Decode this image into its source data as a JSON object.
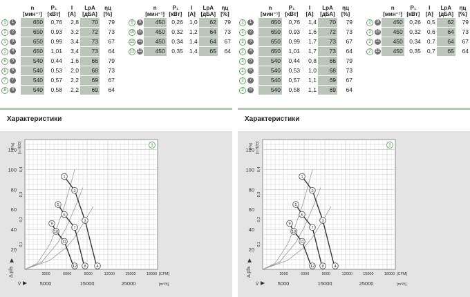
{
  "panels": [
    {
      "id": "1",
      "headers": {
        "n": "n",
        "n_unit": "[мин⁻¹]",
        "p": "P₁",
        "p_unit": "[кВт]",
        "i": "I",
        "i_unit": "[A]",
        "l": "LpA",
        "l_unit": "[дБА]",
        "e": "ηц",
        "e_unit": "[%]"
      },
      "rows_left": [
        {
          "curve": "1",
          "point": "1",
          "n": "650",
          "p": "0,76",
          "i": "2,8",
          "l": "70",
          "e": "79"
        },
        {
          "curve": "1",
          "point": "2",
          "n": "650",
          "p": "0,93",
          "i": "3,2",
          "l": "72",
          "e": "73"
        },
        {
          "curve": "1",
          "point": "3",
          "n": "650",
          "p": "0,99",
          "i": "3,4",
          "l": "73",
          "e": "67"
        },
        {
          "curve": "1",
          "point": "4",
          "n": "650",
          "p": "1,01",
          "i": "3,4",
          "l": "73",
          "e": "64"
        },
        {
          "curve": "5",
          "point": "5",
          "n": "540",
          "p": "0,44",
          "i": "1,6",
          "l": "66",
          "e": "79"
        },
        {
          "curve": "6",
          "point": "6",
          "n": "540",
          "p": "0,53",
          "i": "2,0",
          "l": "68",
          "e": "73"
        },
        {
          "curve": "7",
          "point": "7",
          "n": "540",
          "p": "0,57",
          "i": "2,2",
          "l": "69",
          "e": "67"
        },
        {
          "curve": "8",
          "point": "8",
          "n": "540",
          "p": "0,58",
          "i": "2,2",
          "l": "69",
          "e": "64"
        }
      ],
      "rows_right": [
        {
          "curve": "9",
          "point": "9",
          "n": "450",
          "p": "0,26",
          "i": "1,0",
          "l": "62",
          "e": "79"
        },
        {
          "curve": "10",
          "point": "10",
          "n": "450",
          "p": "0,32",
          "i": "1,2",
          "l": "64",
          "e": "73"
        },
        {
          "curve": "11",
          "point": "11",
          "n": "450",
          "p": "0,34",
          "i": "1,4",
          "l": "64",
          "e": "67"
        },
        {
          "curve": "12",
          "point": "12",
          "n": "450",
          "p": "0,35",
          "i": "1,4",
          "l": "65",
          "e": "64"
        }
      ],
      "heading": "Характеристики",
      "badge": "1"
    },
    {
      "id": "2",
      "headers": {
        "n": "n",
        "n_unit": "[мин⁻¹]",
        "p": "P₁",
        "p_unit": "[кВт]",
        "i": "I",
        "i_unit": "[A]",
        "l": "LpA",
        "l_unit": "[дБА]",
        "e": "ηц",
        "e_unit": "[%]"
      },
      "rows_left": [
        {
          "curve": "2",
          "point": "1",
          "n": "650",
          "p": "0,76",
          "i": "1,4",
          "l": "70",
          "e": "79"
        },
        {
          "curve": "2",
          "point": "2",
          "n": "650",
          "p": "0,93",
          "i": "1,6",
          "l": "72",
          "e": "73"
        },
        {
          "curve": "2",
          "point": "3",
          "n": "650",
          "p": "0,99",
          "i": "1,7",
          "l": "73",
          "e": "67"
        },
        {
          "curve": "2",
          "point": "4",
          "n": "650",
          "p": "1,01",
          "i": "1,7",
          "l": "73",
          "e": "64"
        },
        {
          "curve": "2",
          "point": "5",
          "n": "540",
          "p": "0,44",
          "i": "0,8",
          "l": "66",
          "e": "79"
        },
        {
          "curve": "2",
          "point": "6",
          "n": "540",
          "p": "0,53",
          "i": "1,0",
          "l": "68",
          "e": "73"
        },
        {
          "curve": "2",
          "point": "7",
          "n": "540",
          "p": "0,57",
          "i": "1,1",
          "l": "69",
          "e": "67"
        },
        {
          "curve": "2",
          "point": "8",
          "n": "540",
          "p": "0,58",
          "i": "1,1",
          "l": "69",
          "e": "64"
        }
      ],
      "rows_right": [
        {
          "curve": "2",
          "point": "9",
          "n": "450",
          "p": "0,26",
          "i": "0,5",
          "l": "62",
          "e": "79"
        },
        {
          "curve": "2",
          "point": "10",
          "n": "450",
          "p": "0,32",
          "i": "0,6",
          "l": "64",
          "e": "73"
        },
        {
          "curve": "2",
          "point": "11",
          "n": "450",
          "p": "0,34",
          "i": "0,7",
          "l": "64",
          "e": "67"
        },
        {
          "curve": "2",
          "point": "12",
          "n": "450",
          "p": "0,35",
          "i": "0,7",
          "l": "65",
          "e": "64"
        }
      ],
      "heading": "Характеристики",
      "badge": "2"
    }
  ],
  "chart_data": [
    {
      "type": "line",
      "badge": "1",
      "ylabel_left": "[Pa]",
      "ylabel_left2": "[in H2O]",
      "y_axis_label": "Δ pfa",
      "x_axis_label": "V̇",
      "y_ticks": [
        "120",
        "100",
        "80",
        "60",
        "40",
        "20"
      ],
      "y2_ticks": [
        "0,4",
        "0,3",
        "0,2",
        "0,1"
      ],
      "x_cfm_ticks": [
        "3000",
        "6000",
        "9000",
        "12000",
        "15000",
        "18000",
        "[CFM]"
      ],
      "x_m3h_ticks": [
        "5000",
        "15000",
        "25000",
        "[m³/h]"
      ],
      "xlim_m3h": [
        0,
        32000
      ],
      "ylim_pa": [
        0,
        130
      ],
      "speed_curves": [
        {
          "name": "650",
          "points": [
            [
              9500,
              93
            ],
            [
              12000,
              79
            ],
            [
              14500,
              49
            ],
            [
              17500,
              0
            ]
          ]
        },
        {
          "name": "540",
          "points": [
            [
              8000,
              65
            ],
            [
              9500,
              55
            ],
            [
              12000,
              42
            ],
            [
              14500,
              0
            ]
          ]
        },
        {
          "name": "450",
          "points": [
            [
              6500,
              46
            ],
            [
              7500,
              38
            ],
            [
              9500,
              28
            ],
            [
              12000,
              0
            ]
          ]
        }
      ],
      "markers": [
        {
          "label": "1",
          "x": 9500,
          "y": 93
        },
        {
          "label": "2",
          "x": 12000,
          "y": 79
        },
        {
          "label": "3",
          "x": 14500,
          "y": 49
        },
        {
          "label": "4",
          "x": 17500,
          "y": 0
        },
        {
          "label": "5",
          "x": 8000,
          "y": 65
        },
        {
          "label": "6",
          "x": 9500,
          "y": 55
        },
        {
          "label": "7",
          "x": 12000,
          "y": 42
        },
        {
          "label": "8",
          "x": 14500,
          "y": 0
        },
        {
          "label": "9",
          "x": 6500,
          "y": 46
        },
        {
          "label": "10",
          "x": 7500,
          "y": 38
        },
        {
          "label": "11",
          "x": 9500,
          "y": 28
        },
        {
          "label": "12",
          "x": 12000,
          "y": 0
        }
      ],
      "system_curves": [
        {
          "name": "79",
          "points": [
            [
              0,
              0
            ],
            [
              3000,
              6
            ],
            [
              6000,
              25
            ],
            [
              8000,
              45
            ],
            [
              9500,
              63
            ],
            [
              11000,
              84
            ],
            [
              12000,
              100
            ]
          ]
        },
        {
          "name": "73",
          "points": [
            [
              0,
              0
            ],
            [
              4000,
              7
            ],
            [
              8000,
              27
            ],
            [
              10000,
              42
            ],
            [
              12000,
              61
            ],
            [
              14000,
              82
            ]
          ]
        },
        {
          "name": "67",
          "points": [
            [
              0,
              0
            ],
            [
              6000,
              9
            ],
            [
              10000,
              22
            ],
            [
              12000,
              32
            ],
            [
              14500,
              49
            ],
            [
              16500,
              63
            ]
          ]
        }
      ]
    },
    {
      "type": "line",
      "badge": "2",
      "ylabel_left": "[Pa]",
      "ylabel_left2": "[in H2O]",
      "y_axis_label": "Δ pfa",
      "x_axis_label": "V̇",
      "y_ticks": [
        "120",
        "100",
        "80",
        "60",
        "40",
        "20"
      ],
      "y2_ticks": [
        "0,4",
        "0,3",
        "0,2",
        "0,1"
      ],
      "x_cfm_ticks": [
        "3000",
        "6000",
        "9000",
        "12000",
        "15000",
        "18000",
        "[CFM]"
      ],
      "x_m3h_ticks": [
        "5000",
        "15000",
        "25000",
        "[m³/h]"
      ],
      "xlim_m3h": [
        0,
        32000
      ],
      "ylim_pa": [
        0,
        130
      ],
      "speed_curves": [
        {
          "name": "650",
          "points": [
            [
              9500,
              93
            ],
            [
              12000,
              79
            ],
            [
              14500,
              49
            ],
            [
              17500,
              0
            ]
          ]
        },
        {
          "name": "540",
          "points": [
            [
              8000,
              65
            ],
            [
              9500,
              55
            ],
            [
              12000,
              42
            ],
            [
              14500,
              0
            ]
          ]
        },
        {
          "name": "450",
          "points": [
            [
              6500,
              46
            ],
            [
              7500,
              38
            ],
            [
              9500,
              28
            ],
            [
              12000,
              0
            ]
          ]
        }
      ],
      "markers": [
        {
          "label": "1",
          "x": 9500,
          "y": 93
        },
        {
          "label": "2",
          "x": 12000,
          "y": 79
        },
        {
          "label": "3",
          "x": 14500,
          "y": 49
        },
        {
          "label": "4",
          "x": 17500,
          "y": 0
        },
        {
          "label": "5",
          "x": 8000,
          "y": 65
        },
        {
          "label": "6",
          "x": 9500,
          "y": 55
        },
        {
          "label": "7",
          "x": 12000,
          "y": 42
        },
        {
          "label": "8",
          "x": 14500,
          "y": 0
        },
        {
          "label": "9",
          "x": 6500,
          "y": 46
        },
        {
          "label": "10",
          "x": 7500,
          "y": 38
        },
        {
          "label": "11",
          "x": 9500,
          "y": 28
        },
        {
          "label": "12",
          "x": 12000,
          "y": 0
        }
      ],
      "system_curves": [
        {
          "name": "79",
          "points": [
            [
              0,
              0
            ],
            [
              3000,
              6
            ],
            [
              6000,
              25
            ],
            [
              8000,
              45
            ],
            [
              9500,
              63
            ],
            [
              11000,
              84
            ],
            [
              12000,
              100
            ]
          ]
        },
        {
          "name": "73",
          "points": [
            [
              0,
              0
            ],
            [
              4000,
              7
            ],
            [
              8000,
              27
            ],
            [
              10000,
              42
            ],
            [
              12000,
              61
            ],
            [
              14000,
              82
            ]
          ]
        },
        {
          "name": "67",
          "points": [
            [
              0,
              0
            ],
            [
              6000,
              9
            ],
            [
              10000,
              22
            ],
            [
              12000,
              32
            ],
            [
              14500,
              49
            ],
            [
              16500,
              63
            ]
          ]
        }
      ]
    }
  ],
  "colors": {
    "band": "#bcc4bc",
    "marker_green": "#6da36d",
    "solid_marker": "#707070",
    "chart_bg": "#e4e4e4",
    "grid": "#c8c8c8",
    "curve_dark": "#333333",
    "curve_light": "#9a9a9a"
  }
}
